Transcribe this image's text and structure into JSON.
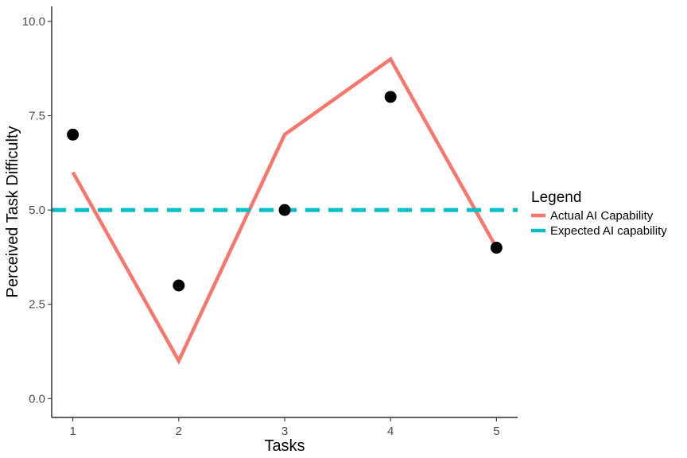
{
  "chart_data": {
    "type": "line",
    "xlabel": "Tasks",
    "ylabel": "Perceived Task Difficulty",
    "x": [
      1,
      2,
      3,
      4,
      5
    ],
    "xlim": [
      0.8,
      5.2
    ],
    "ylim": [
      -0.5,
      10.4
    ],
    "x_ticks": [
      1,
      2,
      3,
      4,
      5
    ],
    "x_tick_labels": [
      "1",
      "2",
      "3",
      "4",
      "5"
    ],
    "y_ticks": [
      0,
      2.5,
      5,
      7.5,
      10
    ],
    "y_tick_labels": [
      "0.0",
      "2.5",
      "5.0",
      "7.5",
      "10.0"
    ],
    "grid": false,
    "series": [
      {
        "name": "Actual AI Capability",
        "kind": "line",
        "color": "#F8766D",
        "x": [
          1,
          2,
          3,
          4,
          5
        ],
        "y": [
          6,
          1,
          7,
          9,
          4
        ]
      },
      {
        "name": "Expected AI capability",
        "kind": "hline",
        "style": "dashed",
        "color": "#00BFC4",
        "y": 5
      }
    ],
    "points": {
      "color": "#000000",
      "x": [
        1,
        2,
        3,
        4,
        5
      ],
      "y": [
        7,
        3,
        5,
        8,
        4
      ]
    },
    "legend": {
      "title": "Legend",
      "position": "right"
    }
  }
}
